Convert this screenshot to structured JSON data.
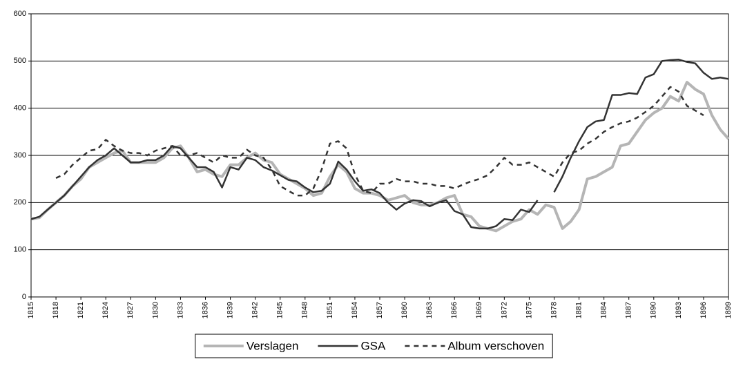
{
  "chart_data": {
    "type": "line",
    "x": [
      1815,
      1816,
      1817,
      1818,
      1819,
      1820,
      1821,
      1822,
      1823,
      1824,
      1825,
      1826,
      1827,
      1828,
      1829,
      1830,
      1831,
      1832,
      1833,
      1834,
      1835,
      1836,
      1837,
      1838,
      1839,
      1840,
      1841,
      1842,
      1843,
      1844,
      1845,
      1846,
      1847,
      1848,
      1849,
      1850,
      1851,
      1852,
      1853,
      1854,
      1855,
      1856,
      1857,
      1858,
      1859,
      1860,
      1861,
      1862,
      1863,
      1864,
      1865,
      1866,
      1867,
      1868,
      1869,
      1870,
      1871,
      1872,
      1873,
      1874,
      1875,
      1876,
      1877,
      1878,
      1879,
      1880,
      1881,
      1882,
      1883,
      1884,
      1885,
      1886,
      1887,
      1888,
      1889,
      1890,
      1891,
      1892,
      1893,
      1894,
      1895,
      1896,
      1897,
      1898,
      1899
    ],
    "series": [
      {
        "name": "Verslagen",
        "color": "#b5b5b5",
        "width": 4,
        "dashed": false,
        "values": [
          165,
          168,
          185,
          200,
          215,
          235,
          250,
          275,
          285,
          295,
          305,
          310,
          285,
          285,
          285,
          285,
          295,
          315,
          320,
          295,
          265,
          270,
          260,
          255,
          280,
          280,
          295,
          305,
          290,
          285,
          260,
          250,
          240,
          230,
          215,
          220,
          255,
          280,
          265,
          230,
          220,
          220,
          215,
          205,
          210,
          215,
          200,
          195,
          195,
          200,
          210,
          215,
          175,
          170,
          150,
          145,
          140,
          150,
          160,
          165,
          185,
          175,
          195,
          190,
          145,
          160,
          185,
          250,
          255,
          265,
          275,
          320,
          325,
          350,
          375,
          390,
          400,
          425,
          415,
          455,
          440,
          430,
          385,
          355,
          335
        ]
      },
      {
        "name": "GSA",
        "color": "#333333",
        "width": 2.5,
        "dashed": false,
        "values": [
          165,
          170,
          185,
          200,
          215,
          235,
          255,
          275,
          290,
          300,
          315,
          300,
          285,
          285,
          290,
          290,
          300,
          320,
          315,
          295,
          275,
          275,
          265,
          232,
          275,
          270,
          295,
          290,
          275,
          268,
          258,
          248,
          245,
          232,
          222,
          225,
          240,
          287,
          270,
          245,
          225,
          228,
          220,
          200,
          185,
          198,
          205,
          203,
          192,
          200,
          205,
          182,
          175,
          148,
          145,
          145,
          150,
          165,
          163,
          185,
          180,
          205,
          null,
          222,
          255,
          295,
          330,
          360,
          372,
          375,
          428,
          428,
          432,
          430,
          465,
          472,
          500,
          502,
          503,
          498,
          495,
          475,
          462,
          465,
          462
        ]
      },
      {
        "name": "Album verschoven",
        "color": "#333333",
        "width": 2.5,
        "dashed": true,
        "values": [
          null,
          null,
          null,
          252,
          260,
          280,
          295,
          310,
          313,
          333,
          320,
          310,
          305,
          305,
          300,
          310,
          315,
          320,
          300,
          300,
          305,
          295,
          285,
          300,
          295,
          295,
          312,
          300,
          295,
          270,
          235,
          225,
          215,
          215,
          230,
          270,
          325,
          330,
          315,
          260,
          225,
          220,
          240,
          240,
          250,
          245,
          245,
          240,
          240,
          235,
          235,
          230,
          238,
          245,
          250,
          258,
          275,
          295,
          280,
          280,
          285,
          275,
          265,
          255,
          285,
          305,
          310,
          325,
          335,
          350,
          360,
          368,
          372,
          380,
          392,
          405,
          425,
          445,
          435,
          405,
          395,
          385,
          null,
          null,
          null
        ]
      }
    ],
    "xlim": [
      1815,
      1899
    ],
    "xticks": [
      1815,
      1818,
      1821,
      1824,
      1827,
      1830,
      1833,
      1836,
      1839,
      1842,
      1845,
      1848,
      1851,
      1854,
      1857,
      1860,
      1863,
      1866,
      1869,
      1872,
      1875,
      1878,
      1881,
      1884,
      1887,
      1890,
      1893,
      1896,
      1899
    ],
    "ylim": [
      0,
      600
    ],
    "yticks": [
      0,
      100,
      200,
      300,
      400,
      500,
      600
    ],
    "grid": true,
    "legend": "bottom"
  }
}
